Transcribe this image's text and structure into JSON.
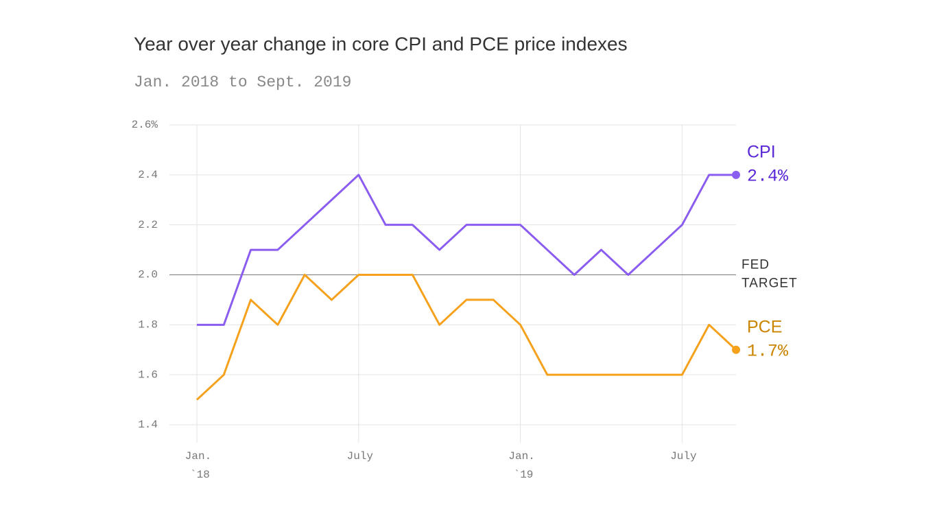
{
  "chart_data": {
    "type": "line",
    "title": "Year over year change in core CPI and PCE price indexes",
    "subtitle": "Jan. 2018 to Sept. 2019",
    "x": [
      "2018-01",
      "2018-02",
      "2018-03",
      "2018-04",
      "2018-05",
      "2018-06",
      "2018-07",
      "2018-08",
      "2018-09",
      "2018-10",
      "2018-11",
      "2018-12",
      "2019-01",
      "2019-02",
      "2019-03",
      "2019-04",
      "2019-05",
      "2019-06",
      "2019-07",
      "2019-08",
      "2019-09"
    ],
    "xticks": [
      {
        "value": "2018-01",
        "label": [
          "Jan.",
          "`18"
        ]
      },
      {
        "value": "2018-07",
        "label": [
          "July"
        ]
      },
      {
        "value": "2019-01",
        "label": [
          "Jan.",
          "`19"
        ]
      },
      {
        "value": "2019-07",
        "label": [
          "July"
        ]
      }
    ],
    "ylim": [
      1.4,
      2.6
    ],
    "yticks": [
      {
        "value": 1.4,
        "label": "1.4"
      },
      1.6,
      1.8,
      {
        "value": 2,
        "label": "2.0"
      },
      2.2,
      2.4,
      {
        "value": 2.6,
        "label": "2.6%"
      }
    ],
    "grid": true,
    "reference_line": {
      "value": 2,
      "label": [
        "FED",
        "TARGET"
      ],
      "color": "#777777"
    },
    "series": [
      {
        "name": "CPI",
        "color": "#8b5cf0",
        "label_color": "#5a28d6",
        "values": [
          1.8,
          1.8,
          2.1,
          2.1,
          2.2,
          2.3,
          2.4,
          2.2,
          2.2,
          2.1,
          2.2,
          2.2,
          2.2,
          2.1,
          2.0,
          2.1,
          2.0,
          2.1,
          2.2,
          2.4,
          2.4
        ],
        "value_labels": [
          null,
          null,
          null,
          null,
          null,
          null,
          null,
          null,
          null,
          null,
          null,
          null,
          null,
          null,
          null,
          null,
          null,
          null,
          null,
          null,
          "2.4%"
        ]
      },
      {
        "name": "PCE",
        "color": "#f5a11c",
        "label_color": "#c98400",
        "values": [
          1.5,
          1.6,
          1.9,
          1.8,
          2.0,
          1.9,
          2.0,
          2.0,
          2.0,
          1.8,
          1.9,
          1.9,
          1.8,
          1.6,
          1.6,
          1.6,
          1.6,
          1.6,
          1.6,
          1.8,
          1.7
        ],
        "value_labels": [
          null,
          null,
          null,
          null,
          null,
          null,
          null,
          null,
          null,
          null,
          null,
          null,
          null,
          null,
          null,
          null,
          null,
          null,
          null,
          null,
          "1.7%"
        ]
      }
    ]
  }
}
